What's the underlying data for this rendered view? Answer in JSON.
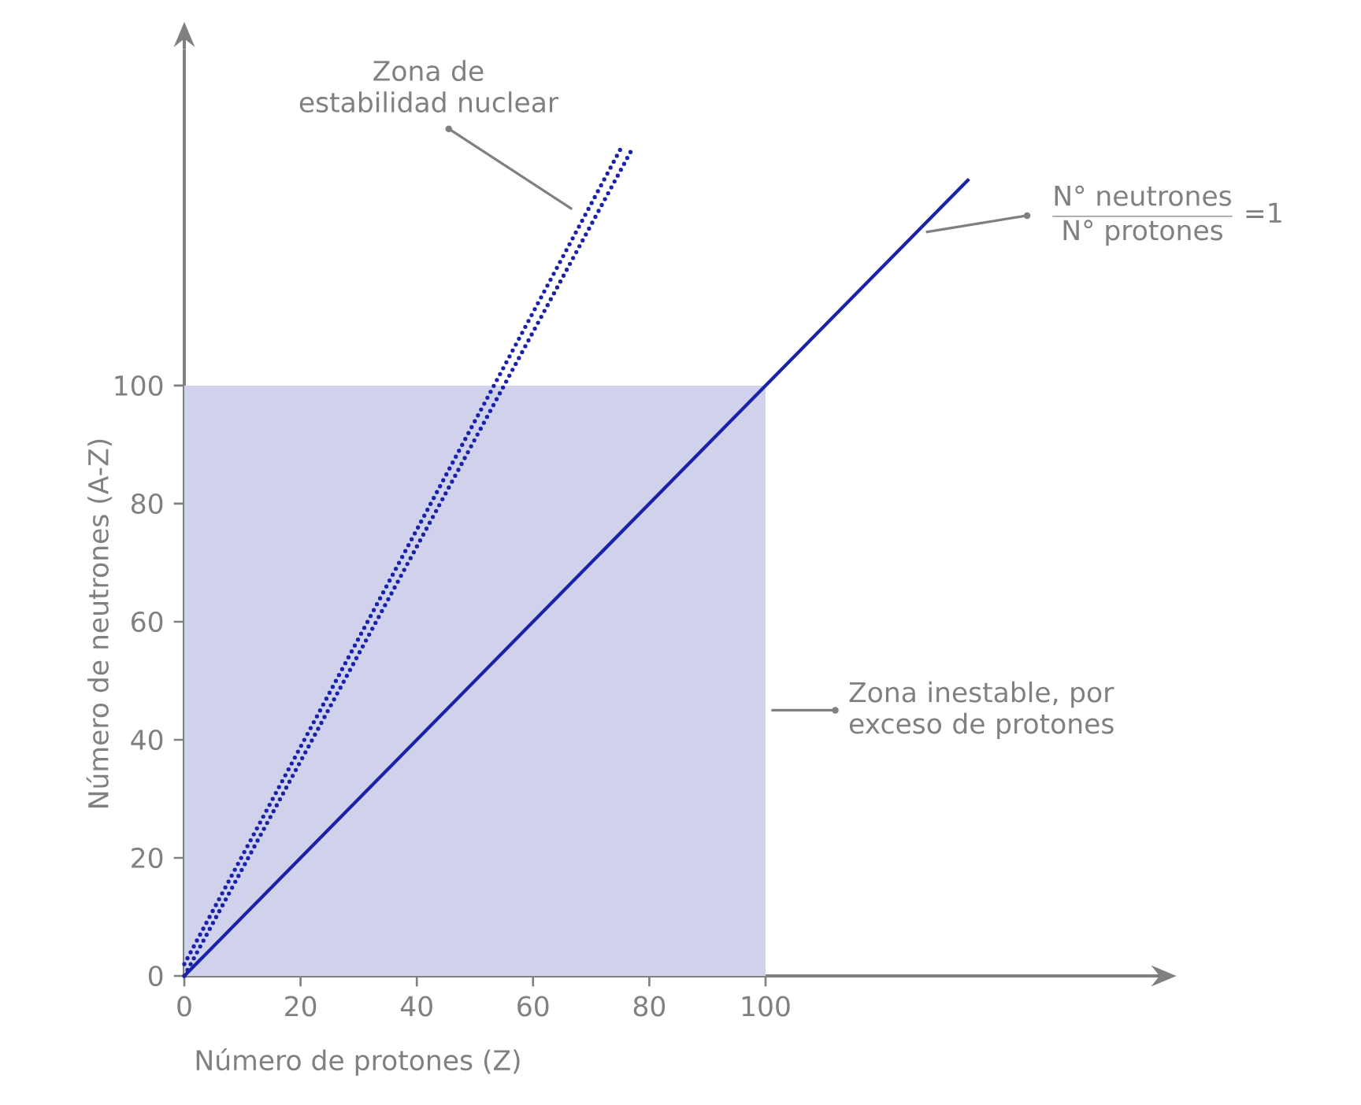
{
  "chart_data": {
    "type": "line",
    "xlabel": "Número de protones (Z)",
    "ylabel": "Número de neutrones (A-Z)",
    "xlim": [
      0,
      166
    ],
    "ylim": [
      0,
      157
    ],
    "xticks": [
      0,
      20,
      40,
      60,
      80,
      100
    ],
    "yticks": [
      0,
      20,
      40,
      60,
      80,
      100
    ],
    "marker": "none",
    "series": [
      {
        "type": "area",
        "color": "#d0d2ec",
        "x": [
          0,
          100
        ],
        "values": [
          100,
          100
        ]
      },
      {
        "color": "#1a23a8",
        "line_style": "solid",
        "x": [
          0,
          135
        ],
        "values": [
          0,
          135
        ]
      },
      {
        "color": "#1a23a8",
        "line_style": "dotted",
        "x": [
          0,
          75
        ],
        "values": [
          2,
          140
        ]
      },
      {
        "color": "#1a23a8",
        "line_style": "dotted",
        "x": [
          0,
          77
        ],
        "values": [
          0,
          140
        ]
      }
    ],
    "annotations": [
      "Zona de estabilidad nuclear",
      {
        "text": "Zona inestable, por exceso de protones",
        "x": 101,
        "y": 45
      },
      {
        "text": "\\frac{\\text{N° neutrones}}{\\text{N° protones}}\\ \\text{=1}",
        "x": 127.6,
        "y": 126
      }
    ]
  }
}
